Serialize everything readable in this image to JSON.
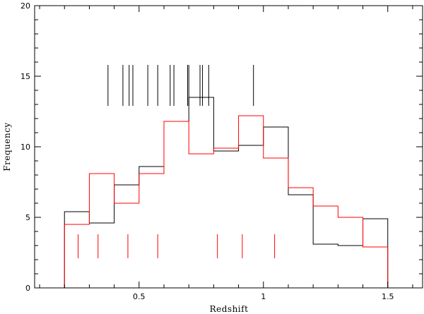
{
  "chart_data": {
    "type": "histogram",
    "title": "",
    "xlabel": "Redshift",
    "ylabel": "Frequency",
    "xlim": [
      0.08,
      1.64
    ],
    "ylim": [
      0,
      20
    ],
    "xticks": [
      0.5,
      1,
      1.5
    ],
    "xtick_labels": [
      "0.5",
      "1",
      "1.5"
    ],
    "yticks": [
      0,
      5,
      10,
      15,
      20
    ],
    "ytick_labels": [
      "0",
      "5",
      "10",
      "15",
      "20"
    ],
    "grid": false,
    "legend": "none",
    "bin_edges": [
      0.2,
      0.3,
      0.4,
      0.5,
      0.6,
      0.7,
      0.8,
      0.9,
      1.0,
      1.1,
      1.2,
      1.3,
      1.4,
      1.5
    ],
    "series": [
      {
        "color": "#000000",
        "values": [
          5.4,
          4.6,
          7.3,
          8.6,
          11.8,
          13.5,
          9.7,
          10.1,
          11.4,
          6.6,
          3.1,
          3.0,
          4.9
        ]
      },
      {
        "color": "#ff0000",
        "values": [
          4.5,
          8.1,
          6.0,
          8.1,
          11.8,
          9.5,
          9.9,
          12.2,
          9.2,
          7.1,
          5.8,
          5.0,
          2.9
        ]
      }
    ],
    "rug_markers": [
      {
        "color": "#000000",
        "y_range": [
          12.9,
          15.8
        ],
        "x": [
          0.375,
          0.435,
          0.46,
          0.475,
          0.535,
          0.575,
          0.625,
          0.64,
          0.695,
          0.7,
          0.745,
          0.755,
          0.78,
          0.96
        ]
      },
      {
        "color": "#ff0000",
        "y_range": [
          2.1,
          3.8
        ],
        "x": [
          0.255,
          0.335,
          0.455,
          0.575,
          0.815,
          0.915,
          1.045
        ]
      }
    ]
  }
}
